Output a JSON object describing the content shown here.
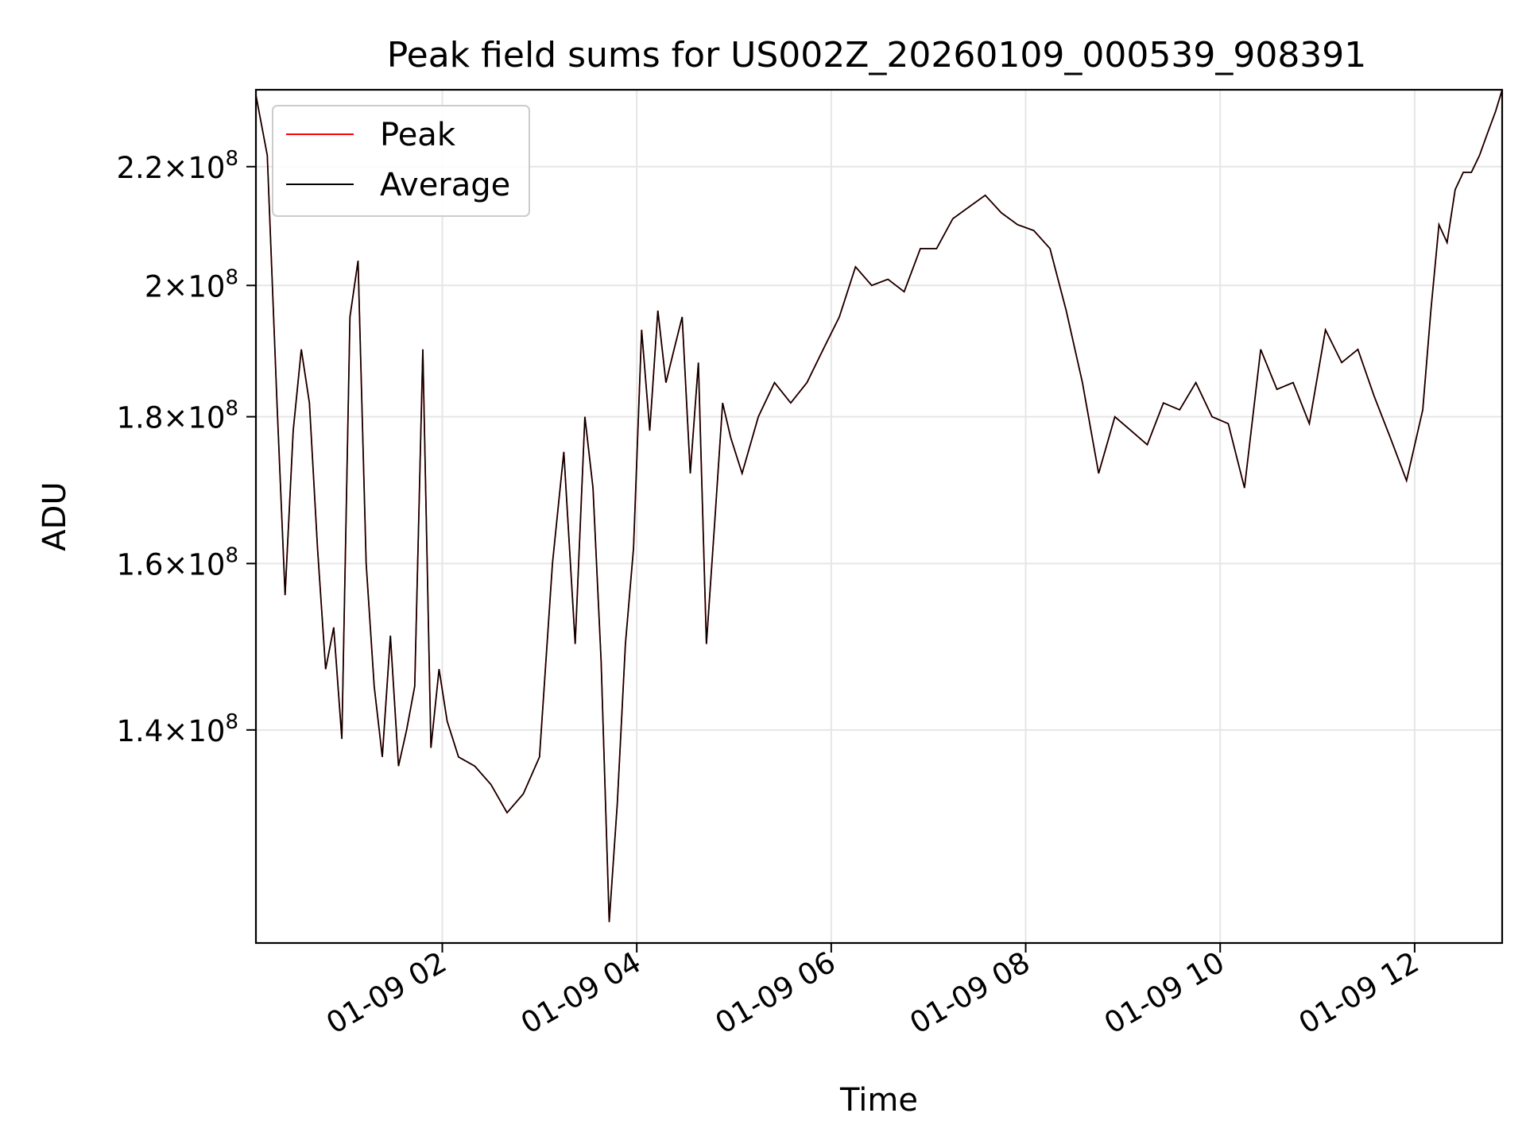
{
  "chart_data": {
    "type": "line",
    "title": "Peak field sums for US002Z_20260109_000539_908391",
    "xlabel": "Time",
    "ylabel": "ADU",
    "y_scale": "log",
    "ylim": [
      118000000,
      234000000
    ],
    "xlim": [
      "2026-01-09 00:05",
      "2026-01-09 12:54"
    ],
    "grid": true,
    "legend_position": "top-left",
    "x_ticks": [
      {
        "x": "2026-01-09 02:00",
        "label": "01-09 02"
      },
      {
        "x": "2026-01-09 04:00",
        "label": "01-09 04"
      },
      {
        "x": "2026-01-09 06:00",
        "label": "01-09 06"
      },
      {
        "x": "2026-01-09 08:00",
        "label": "01-09 08"
      },
      {
        "x": "2026-01-09 10:00",
        "label": "01-09 10"
      },
      {
        "x": "2026-01-09 12:00",
        "label": "01-09 12"
      }
    ],
    "y_ticks": [
      {
        "y": 140000000,
        "mantissa": "1.4",
        "exponent": "8"
      },
      {
        "y": 160000000,
        "mantissa": "1.6",
        "exponent": "8"
      },
      {
        "y": 180000000,
        "mantissa": "1.8",
        "exponent": "8"
      },
      {
        "y": 200000000,
        "mantissa": "2",
        "exponent": "8"
      },
      {
        "y": 220000000,
        "mantissa": "2.2",
        "exponent": "8"
      }
    ],
    "y_tick_times": "×10",
    "series": [
      {
        "name": "Peak",
        "color": "#ff0000"
      },
      {
        "name": "Average",
        "color": "#000000"
      }
    ],
    "x": [
      "2026-01-09 00:05",
      "2026-01-09 00:12",
      "2026-01-09 00:18",
      "2026-01-09 00:23",
      "2026-01-09 00:28",
      "2026-01-09 00:33",
      "2026-01-09 00:38",
      "2026-01-09 00:43",
      "2026-01-09 00:48",
      "2026-01-09 00:53",
      "2026-01-09 00:58",
      "2026-01-09 01:03",
      "2026-01-09 01:08",
      "2026-01-09 01:13",
      "2026-01-09 01:18",
      "2026-01-09 01:23",
      "2026-01-09 01:28",
      "2026-01-09 01:33",
      "2026-01-09 01:38",
      "2026-01-09 01:43",
      "2026-01-09 01:48",
      "2026-01-09 01:53",
      "2026-01-09 01:58",
      "2026-01-09 02:03",
      "2026-01-09 02:10",
      "2026-01-09 02:20",
      "2026-01-09 02:30",
      "2026-01-09 02:40",
      "2026-01-09 02:50",
      "2026-01-09 03:00",
      "2026-01-09 03:08",
      "2026-01-09 03:15",
      "2026-01-09 03:22",
      "2026-01-09 03:28",
      "2026-01-09 03:33",
      "2026-01-09 03:38",
      "2026-01-09 03:43",
      "2026-01-09 03:48",
      "2026-01-09 03:53",
      "2026-01-09 03:58",
      "2026-01-09 04:03",
      "2026-01-09 04:08",
      "2026-01-09 04:13",
      "2026-01-09 04:18",
      "2026-01-09 04:23",
      "2026-01-09 04:28",
      "2026-01-09 04:33",
      "2026-01-09 04:38",
      "2026-01-09 04:43",
      "2026-01-09 04:48",
      "2026-01-09 04:53",
      "2026-01-09 04:58",
      "2026-01-09 05:05",
      "2026-01-09 05:15",
      "2026-01-09 05:25",
      "2026-01-09 05:35",
      "2026-01-09 05:45",
      "2026-01-09 05:55",
      "2026-01-09 06:05",
      "2026-01-09 06:15",
      "2026-01-09 06:25",
      "2026-01-09 06:35",
      "2026-01-09 06:45",
      "2026-01-09 06:55",
      "2026-01-09 07:05",
      "2026-01-09 07:15",
      "2026-01-09 07:25",
      "2026-01-09 07:35",
      "2026-01-09 07:45",
      "2026-01-09 07:55",
      "2026-01-09 08:05",
      "2026-01-09 08:15",
      "2026-01-09 08:25",
      "2026-01-09 08:35",
      "2026-01-09 08:45",
      "2026-01-09 08:55",
      "2026-01-09 09:05",
      "2026-01-09 09:15",
      "2026-01-09 09:25",
      "2026-01-09 09:35",
      "2026-01-09 09:45",
      "2026-01-09 09:55",
      "2026-01-09 10:05",
      "2026-01-09 10:15",
      "2026-01-09 10:25",
      "2026-01-09 10:35",
      "2026-01-09 10:45",
      "2026-01-09 10:55",
      "2026-01-09 11:05",
      "2026-01-09 11:15",
      "2026-01-09 11:25",
      "2026-01-09 11:35",
      "2026-01-09 11:45",
      "2026-01-09 11:55",
      "2026-01-09 12:05",
      "2026-01-09 12:10",
      "2026-01-09 12:15",
      "2026-01-09 12:20",
      "2026-01-09 12:25",
      "2026-01-09 12:30",
      "2026-01-09 12:35",
      "2026-01-09 12:40",
      "2026-01-09 12:45",
      "2026-01-09 12:50",
      "2026-01-09 12:54"
    ],
    "y": [
      233000000,
      222000000,
      182000000,
      156000000,
      178000000,
      190000000,
      182000000,
      162000000,
      147000000,
      152000000,
      139000000,
      195000000,
      204000000,
      160000000,
      145000000,
      137000000,
      151000000,
      136000000,
      140000000,
      145000000,
      190000000,
      138000000,
      147000000,
      141000000,
      137000000,
      136000000,
      134000000,
      131000000,
      133000000,
      137000000,
      160000000,
      175000000,
      150000000,
      180000000,
      170000000,
      148000000,
      120000000,
      132000000,
      150000000,
      162000000,
      193000000,
      178000000,
      196000000,
      185000000,
      190000000,
      195000000,
      172000000,
      188000000,
      150000000,
      165000000,
      182000000,
      177000000,
      172000000,
      180000000,
      185000000,
      182000000,
      185000000,
      190000000,
      195000000,
      203000000,
      200000000,
      201000000,
      199000000,
      206000000,
      206000000,
      211000000,
      213000000,
      215000000,
      212000000,
      210000000,
      209000000,
      206000000,
      196000000,
      185000000,
      172000000,
      180000000,
      178000000,
      176000000,
      182000000,
      181000000,
      185000000,
      180000000,
      179000000,
      170000000,
      190000000,
      184000000,
      185000000,
      179000000,
      193000000,
      188000000,
      190000000,
      183000000,
      177000000,
      171000000,
      181000000,
      196000000,
      210000000,
      207000000,
      216000000,
      219000000,
      219000000,
      222000000,
      226000000,
      230000000,
      234000000
    ],
    "y_peak_offset": [
      0,
      0,
      0,
      0,
      0,
      0,
      0,
      0,
      0,
      0,
      0,
      0,
      0,
      0,
      0,
      0,
      0,
      0,
      0,
      0,
      0,
      0,
      0,
      0,
      0,
      0,
      0,
      0,
      0,
      0,
      0,
      0,
      0,
      0,
      0,
      0,
      0,
      0,
      0,
      0,
      0,
      0,
      0,
      0,
      0,
      0,
      0,
      0,
      0,
      0,
      0,
      0,
      0,
      0,
      0,
      0,
      0,
      0,
      0,
      0,
      0,
      0,
      0,
      0,
      0,
      0,
      0,
      0,
      0,
      0,
      0,
      0,
      0,
      0,
      0,
      0,
      0,
      0,
      0,
      0,
      0,
      0,
      0,
      0,
      0,
      0,
      0,
      0,
      0,
      0,
      0,
      0,
      0,
      0,
      0,
      0,
      0,
      0,
      0,
      0,
      0,
      0,
      0,
      0,
      0
    ]
  }
}
